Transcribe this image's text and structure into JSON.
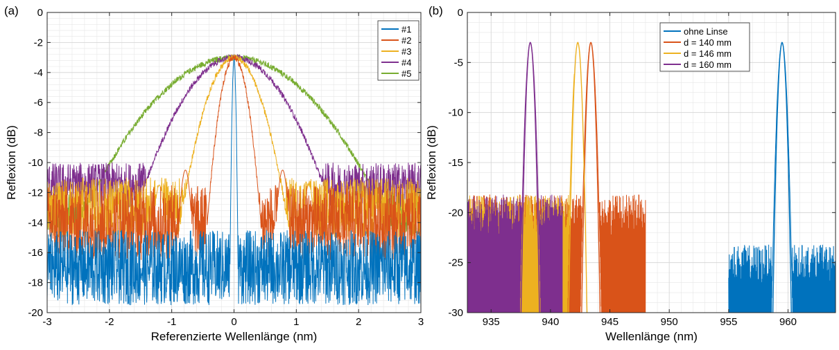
{
  "panels": {
    "a_label": "(a)",
    "b_label": "(b)"
  },
  "chart_data": [
    {
      "type": "line",
      "panel": "(a)",
      "xlabel": "Referenzierte Wellenlänge (nm)",
      "ylabel": "Reflexion (dB)",
      "xlim": [
        -3,
        3
      ],
      "ylim": [
        -20,
        0
      ],
      "xticks": [
        -3,
        -2,
        -1,
        0,
        1,
        2,
        3
      ],
      "yticks": [
        0,
        -2,
        -4,
        -6,
        -8,
        -10,
        -12,
        -14,
        -16,
        -18,
        -20
      ],
      "grid": true,
      "legend_position": "top-right",
      "series": [
        {
          "name": "#1",
          "color": "#0072BD",
          "peak_x": 0,
          "peak_y": -3.1,
          "fwhm_nm": 0.06,
          "noise_floor": -17,
          "noise_amplitude": 2.5
        },
        {
          "name": "#2",
          "color": "#D95319",
          "peak_x": 0,
          "peak_y": -3.0,
          "fwhm_nm": 0.45,
          "noise_floor": -14,
          "noise_amplitude": 2.5,
          "sidelobes": [
            {
              "x": -0.78,
              "y": -10.5
            },
            {
              "x": 0.78,
              "y": -10.5
            }
          ]
        },
        {
          "name": "#3",
          "color": "#EDB120",
          "peak_x": 0,
          "peak_y": -3.0,
          "fwhm_nm": 0.9,
          "noise_floor": -13,
          "noise_amplitude": 2.0,
          "sidelobes": [
            {
              "x": -1.2,
              "y": -11.5
            },
            {
              "x": 1.2,
              "y": -11.5
            }
          ]
        },
        {
          "name": "#4",
          "color": "#7E2F8E",
          "peak_x": 0,
          "peak_y": -3.0,
          "fwhm_nm": 1.7,
          "noise_floor": -11.5,
          "noise_amplitude": 1.5
        },
        {
          "name": "#5",
          "color": "#77AC30",
          "peak_x": 0,
          "peak_y": -3.0,
          "fwhm_nm": 2.6,
          "noise_floor": -13.5,
          "noise_amplitude": 1.5
        }
      ]
    },
    {
      "type": "line",
      "panel": "(b)",
      "xlabel": "Wellenlänge (nm)",
      "ylabel": "Reflexion (dB)",
      "xlim": [
        933,
        964
      ],
      "ylim": [
        -30,
        0
      ],
      "xticks": [
        935,
        940,
        945,
        950,
        955,
        960
      ],
      "yticks": [
        0,
        -5,
        -10,
        -15,
        -20,
        -25,
        -30
      ],
      "grid": true,
      "legend_position": "top-center",
      "series": [
        {
          "name": "ohne Linse",
          "color": "#0072BD",
          "peak_x": 959.5,
          "peak_y": -3.0,
          "noise_range": [
            955,
            964
          ],
          "noise_floor": -26
        },
        {
          "name": "d = 140 mm",
          "color": "#D95319",
          "peak_x": 943.4,
          "peak_y": -3.0,
          "noise_range": [
            933,
            948
          ],
          "noise_floor": -21
        },
        {
          "name": "d = 146 mm",
          "color": "#EDB120",
          "peak_x": 942.3,
          "peak_y": -3.0,
          "noise_range": [
            933,
            942
          ],
          "noise_floor": -21
        },
        {
          "name": "d = 160 mm",
          "color": "#7E2F8E",
          "peak_x": 938.3,
          "peak_y": -3.0,
          "noise_range": [
            933,
            941
          ],
          "noise_floor": -21
        }
      ]
    }
  ]
}
